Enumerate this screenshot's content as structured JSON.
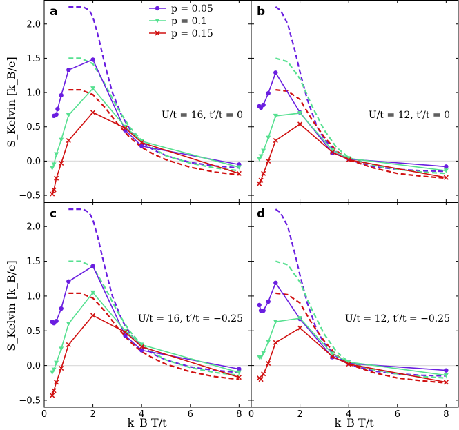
{
  "chart_data": {
    "type": "line",
    "ylabel": "S_Kelvin [k_B/e]",
    "xlabel": "k_B T/t",
    "xlim": [
      0,
      8.5
    ],
    "ylim": [
      -0.6,
      2.35
    ],
    "xticks": [
      0,
      2,
      4,
      6,
      8
    ],
    "yticks": [
      -0.5,
      0.0,
      0.5,
      1.0,
      1.5,
      2.0
    ],
    "xtick_labels": [
      "0",
      "2",
      "4",
      "6",
      "8"
    ],
    "ytick_labels": [
      "−0.5",
      "0.0",
      "0.5",
      "1.0",
      "1.5",
      "2.0"
    ],
    "legend": {
      "placement": "top-right of panel a",
      "entries": [
        {
          "label": "p = 0.05",
          "color": "#6a1ee0",
          "marker": "circle"
        },
        {
          "label": "p = 0.1",
          "color": "#56e090",
          "marker": "triangle-down"
        },
        {
          "label": "p = 0.15",
          "color": "#d01010",
          "marker": "x"
        }
      ]
    },
    "colors": {
      "p005": "#6a1ee0",
      "p01": "#56e090",
      "p015": "#d01010"
    },
    "panels": [
      {
        "letter": "a",
        "annotation": "U/t = 16, t′/t = 0",
        "series": [
          {
            "name": "p = 0.05",
            "color": "#6a1ee0",
            "marker": "circle",
            "x": [
              0.4,
              0.5,
              0.55,
              0.7,
              1.0,
              2.0,
              3.33,
              4.0,
              8.0
            ],
            "y": [
              0.66,
              0.68,
              0.76,
              0.96,
              1.33,
              1.48,
              0.45,
              0.22,
              -0.05
            ]
          },
          {
            "name": "p = 0.1",
            "color": "#56e090",
            "marker": "triangle-down",
            "x": [
              0.33,
              0.4,
              0.5,
              0.7,
              1.0,
              2.0,
              3.33,
              4.0,
              8.0
            ],
            "y": [
              -0.1,
              -0.05,
              0.1,
              0.31,
              0.67,
              1.06,
              0.5,
              0.29,
              -0.09
            ]
          },
          {
            "name": "p = 0.15",
            "color": "#d01010",
            "marker": "x",
            "x": [
              0.33,
              0.4,
              0.5,
              0.7,
              1.0,
              2.0,
              3.33,
              4.0,
              8.0
            ],
            "y": [
              -0.48,
              -0.42,
              -0.25,
              -0.03,
              0.3,
              0.71,
              0.48,
              0.27,
              -0.18
            ]
          }
        ],
        "dashed": [
          {
            "color": "#6a1ee0",
            "x": [
              1.0,
              1.6,
              1.85,
              2.0,
              2.2,
              2.5,
              2.8,
              3.2,
              3.6,
              4.0,
              4.5,
              5.0,
              6.0,
              7.0,
              8.0
            ],
            "y": [
              2.25,
              2.25,
              2.2,
              2.1,
              1.85,
              1.4,
              1.0,
              0.65,
              0.42,
              0.28,
              0.16,
              0.08,
              -0.02,
              -0.07,
              -0.1
            ]
          },
          {
            "color": "#56e090",
            "x": [
              1.0,
              1.5,
              2.0,
              2.5,
              3.0,
              3.5,
              4.0,
              4.5,
              5.0,
              6.0,
              7.0,
              8.0
            ],
            "y": [
              1.5,
              1.5,
              1.42,
              1.12,
              0.78,
              0.5,
              0.3,
              0.18,
              0.08,
              -0.03,
              -0.1,
              -0.14
            ]
          },
          {
            "color": "#d01010",
            "x": [
              1.0,
              1.5,
              2.0,
              2.5,
              3.0,
              3.5,
              4.0,
              4.5,
              5.0,
              6.0,
              7.0,
              8.0
            ],
            "y": [
              1.04,
              1.04,
              0.97,
              0.78,
              0.55,
              0.35,
              0.2,
              0.1,
              0.02,
              -0.09,
              -0.16,
              -0.2
            ]
          }
        ]
      },
      {
        "letter": "b",
        "annotation": "U/t = 12, t′/t = 0",
        "series": [
          {
            "name": "p = 0.05",
            "color": "#6a1ee0",
            "marker": "circle",
            "x": [
              0.33,
              0.4,
              0.5,
              0.7,
              1.0,
              2.0,
              3.33,
              4.0,
              8.0
            ],
            "y": [
              0.8,
              0.78,
              0.82,
              0.99,
              1.29,
              0.71,
              0.12,
              0.03,
              -0.08
            ]
          },
          {
            "name": "p = 0.1",
            "color": "#56e090",
            "marker": "triangle-down",
            "x": [
              0.33,
              0.4,
              0.5,
              0.7,
              1.0,
              2.0,
              3.33,
              4.0,
              8.0
            ],
            "y": [
              0.03,
              0.07,
              0.15,
              0.34,
              0.66,
              0.7,
              0.16,
              0.04,
              -0.14
            ]
          },
          {
            "name": "p = 0.15",
            "color": "#d01010",
            "marker": "x",
            "x": [
              0.33,
              0.4,
              0.5,
              0.7,
              1.0,
              2.0,
              3.33,
              4.0,
              8.0
            ],
            "y": [
              -0.33,
              -0.28,
              -0.18,
              0.0,
              0.3,
              0.54,
              0.13,
              0.02,
              -0.24
            ]
          }
        ],
        "dashed": [
          {
            "color": "#6a1ee0",
            "x": [
              1.0,
              1.2,
              1.5,
              1.8,
              2.0,
              2.3,
              2.7,
              3.0,
              3.5,
              4.0,
              5.0,
              6.0,
              7.0,
              8.0
            ],
            "y": [
              2.25,
              2.2,
              2.0,
              1.6,
              1.3,
              0.9,
              0.5,
              0.32,
              0.13,
              0.02,
              -0.08,
              -0.12,
              -0.14,
              -0.15
            ]
          },
          {
            "color": "#56e090",
            "x": [
              1.0,
              1.5,
              2.0,
              2.5,
              3.0,
              3.5,
              4.0,
              5.0,
              6.0,
              7.0,
              8.0
            ],
            "y": [
              1.5,
              1.45,
              1.2,
              0.8,
              0.45,
              0.2,
              0.05,
              -0.06,
              -0.12,
              -0.16,
              -0.18
            ]
          },
          {
            "color": "#d01010",
            "x": [
              1.0,
              1.5,
              2.0,
              2.5,
              3.0,
              3.5,
              4.0,
              5.0,
              6.0,
              7.0,
              8.0
            ],
            "y": [
              1.04,
              1.02,
              0.9,
              0.6,
              0.35,
              0.15,
              0.02,
              -0.1,
              -0.18,
              -0.22,
              -0.25
            ]
          }
        ]
      },
      {
        "letter": "c",
        "annotation": "U/t = 16, t′/t = −0.25",
        "series": [
          {
            "name": "p = 0.05",
            "color": "#6a1ee0",
            "marker": "circle",
            "x": [
              0.33,
              0.4,
              0.5,
              0.7,
              1.0,
              2.0,
              3.33,
              4.0,
              8.0
            ],
            "y": [
              0.63,
              0.61,
              0.64,
              0.82,
              1.21,
              1.43,
              0.43,
              0.22,
              -0.05
            ]
          },
          {
            "name": "p = 0.1",
            "color": "#56e090",
            "marker": "triangle-down",
            "x": [
              0.33,
              0.4,
              0.5,
              0.7,
              1.0,
              2.0,
              3.33,
              4.0,
              8.0
            ],
            "y": [
              -0.1,
              -0.06,
              0.04,
              0.24,
              0.6,
              1.05,
              0.5,
              0.3,
              -0.1
            ]
          },
          {
            "name": "p = 0.15",
            "color": "#d01010",
            "marker": "x",
            "x": [
              0.33,
              0.4,
              0.5,
              0.7,
              1.0,
              2.0,
              3.33,
              4.0,
              8.0
            ],
            "y": [
              -0.43,
              -0.36,
              -0.24,
              -0.04,
              0.3,
              0.72,
              0.48,
              0.27,
              -0.17
            ]
          }
        ],
        "dashed": [
          {
            "color": "#6a1ee0",
            "x": [
              1.0,
              1.6,
              1.85,
              2.0,
              2.2,
              2.5,
              2.8,
              3.2,
              3.6,
              4.0,
              4.5,
              5.0,
              6.0,
              7.0,
              8.0
            ],
            "y": [
              2.25,
              2.25,
              2.2,
              2.1,
              1.85,
              1.4,
              1.0,
              0.65,
              0.42,
              0.28,
              0.16,
              0.08,
              -0.02,
              -0.07,
              -0.1
            ]
          },
          {
            "color": "#56e090",
            "x": [
              1.0,
              1.5,
              2.0,
              2.5,
              3.0,
              3.5,
              4.0,
              4.5,
              5.0,
              6.0,
              7.0,
              8.0
            ],
            "y": [
              1.5,
              1.5,
              1.42,
              1.12,
              0.78,
              0.5,
              0.3,
              0.18,
              0.08,
              -0.03,
              -0.1,
              -0.14
            ]
          },
          {
            "color": "#d01010",
            "x": [
              1.0,
              1.5,
              2.0,
              2.5,
              3.0,
              3.5,
              4.0,
              4.5,
              5.0,
              6.0,
              7.0,
              8.0
            ],
            "y": [
              1.04,
              1.04,
              0.97,
              0.78,
              0.55,
              0.35,
              0.2,
              0.1,
              0.02,
              -0.09,
              -0.16,
              -0.2
            ]
          }
        ]
      },
      {
        "letter": "d",
        "annotation": "U/t = 12, t′/t = −0.25",
        "series": [
          {
            "name": "p = 0.05",
            "color": "#6a1ee0",
            "marker": "circle",
            "x": [
              0.33,
              0.4,
              0.5,
              0.7,
              1.0,
              2.0,
              3.33,
              4.0,
              8.0
            ],
            "y": [
              0.87,
              0.79,
              0.79,
              0.92,
              1.19,
              0.67,
              0.12,
              0.03,
              -0.07
            ]
          },
          {
            "name": "p = 0.1",
            "color": "#56e090",
            "marker": "triangle-down",
            "x": [
              0.33,
              0.4,
              0.5,
              0.7,
              1.0,
              2.0,
              3.33,
              4.0,
              8.0
            ],
            "y": [
              0.12,
              0.12,
              0.18,
              0.34,
              0.63,
              0.68,
              0.17,
              0.05,
              -0.14
            ]
          },
          {
            "name": "p = 0.15",
            "color": "#d01010",
            "marker": "x",
            "x": [
              0.33,
              0.4,
              0.5,
              0.7,
              1.0,
              2.0,
              3.33,
              4.0,
              8.0
            ],
            "y": [
              -0.18,
              -0.2,
              -0.12,
              0.03,
              0.33,
              0.54,
              0.13,
              0.02,
              -0.24
            ]
          }
        ],
        "dashed": [
          {
            "color": "#6a1ee0",
            "x": [
              1.0,
              1.2,
              1.5,
              1.8,
              2.0,
              2.3,
              2.7,
              3.0,
              3.5,
              4.0,
              5.0,
              6.0,
              7.0,
              8.0
            ],
            "y": [
              2.25,
              2.2,
              2.0,
              1.6,
              1.3,
              0.9,
              0.5,
              0.32,
              0.13,
              0.02,
              -0.08,
              -0.12,
              -0.14,
              -0.15
            ]
          },
          {
            "color": "#56e090",
            "x": [
              1.0,
              1.5,
              2.0,
              2.5,
              3.0,
              3.5,
              4.0,
              5.0,
              6.0,
              7.0,
              8.0
            ],
            "y": [
              1.5,
              1.45,
              1.2,
              0.8,
              0.45,
              0.2,
              0.05,
              -0.06,
              -0.12,
              -0.16,
              -0.18
            ]
          },
          {
            "color": "#d01010",
            "x": [
              1.0,
              1.5,
              2.0,
              2.5,
              3.0,
              3.5,
              4.0,
              5.0,
              6.0,
              7.0,
              8.0
            ],
            "y": [
              1.04,
              1.02,
              0.9,
              0.6,
              0.35,
              0.15,
              0.02,
              -0.1,
              -0.18,
              -0.22,
              -0.25
            ]
          }
        ]
      }
    ]
  }
}
